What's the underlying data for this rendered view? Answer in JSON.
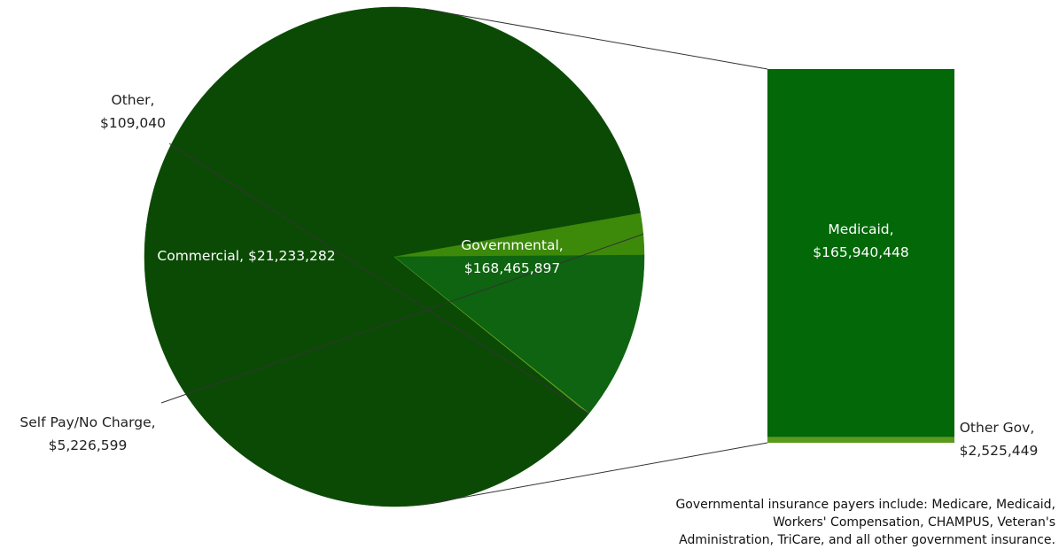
{
  "chart_data": {
    "type": "bar-of-pie",
    "title": "",
    "pie": {
      "slices": [
        {
          "name": "Governmental",
          "value": 168465897,
          "label_name": "Governmental,",
          "label_value": "$168,465,897",
          "color": "#0b4a05"
        },
        {
          "name": "Self Pay/No Charge",
          "value": 5226599,
          "label_name": "Self Pay/No Charge,",
          "label_value": "$5,226,599",
          "color": "#3d8a0b"
        },
        {
          "name": "Commercial",
          "value": 21233282,
          "label_name": "Commercial,",
          "label_value": "$21,233,282",
          "label_inline": "Commercial,  $21,233,282",
          "color": "#0e6410"
        },
        {
          "name": "Other",
          "value": 109040,
          "label_name": "Other,",
          "label_value": "$109,040",
          "color": "#5fa020"
        }
      ]
    },
    "bar": {
      "breakdown_of": "Governmental",
      "segments": [
        {
          "name": "Medicaid",
          "value": 165940448,
          "label_name": "Medicaid,",
          "label_value": "$165,940,448",
          "color": "#026808"
        },
        {
          "name": "Other Gov",
          "value": 2525449,
          "label_name": "Other Gov,",
          "label_value": "$2,525,449",
          "color": "#5b9a1a"
        }
      ]
    },
    "footnote": [
      "Governmental insurance payers include: Medicare, Medicaid,",
      "Workers' Compensation, CHAMPUS, Veteran's",
      "Administration, TriCare,  and all other government insurance."
    ]
  }
}
